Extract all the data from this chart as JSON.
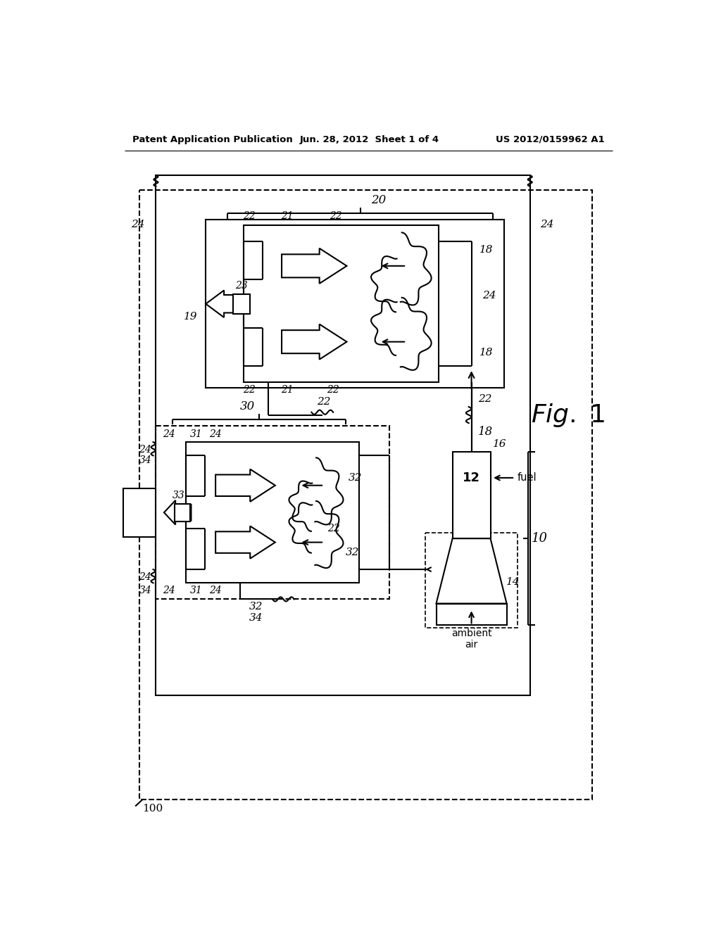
{
  "title_left": "Patent Application Publication",
  "title_center": "Jun. 28, 2012  Sheet 1 of 4",
  "title_right": "US 2012/0159962 A1",
  "background_color": "#ffffff",
  "line_color": "#000000"
}
